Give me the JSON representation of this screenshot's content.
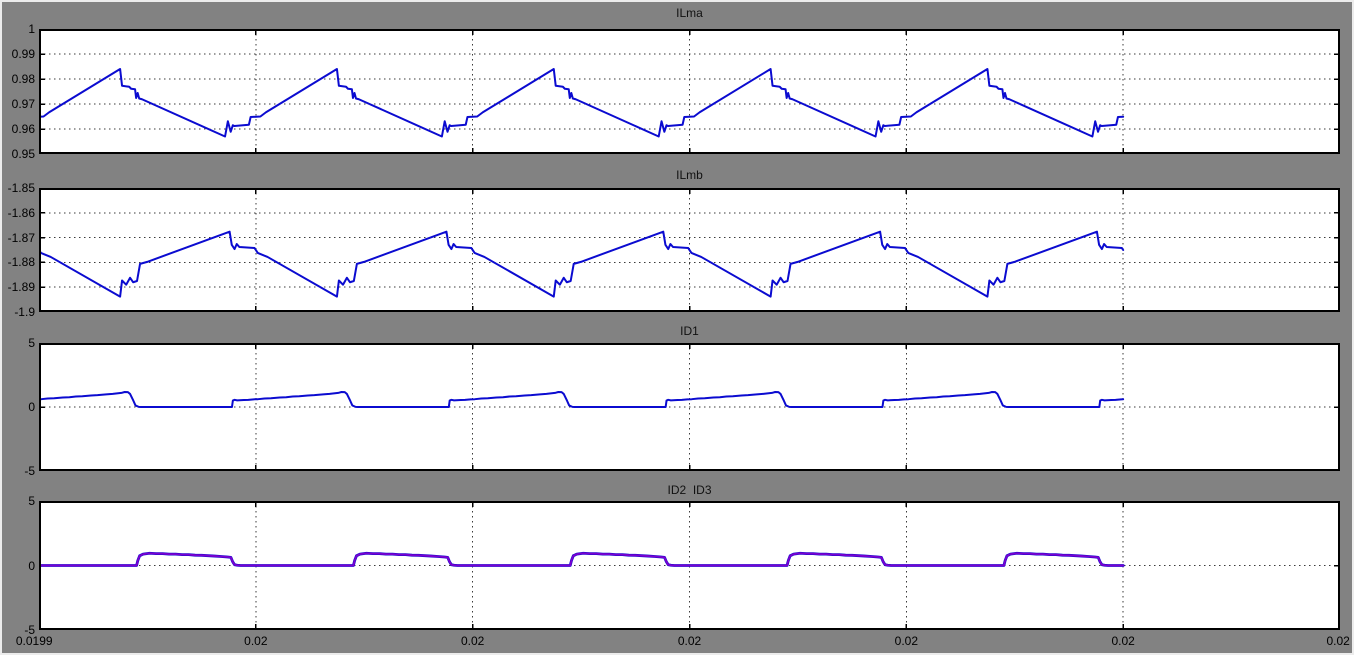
{
  "figure": {
    "background_color": "#828282",
    "plot_background": "#ffffff",
    "grid_color": "#3a3a3a",
    "frame_color": "#000000",
    "blue": "#0b0bd0",
    "purple": "#7d00ce"
  },
  "xaxis": {
    "divisions": 6,
    "tick_labels": [
      "0.0199",
      "0.02",
      "0.02",
      "0.02",
      "0.02",
      "0.02",
      "0.02"
    ],
    "gridline_divisions": [
      1,
      2,
      3,
      4,
      5
    ],
    "data_end_division": 5
  },
  "chart_data": [
    {
      "type": "line",
      "title": "ILma",
      "ylim": [
        0.95,
        1.0
      ],
      "ytick_values": [
        1.0,
        0.99,
        0.98,
        0.97,
        0.96,
        0.95
      ],
      "ytick_labels": [
        "1",
        "0.99",
        "0.98",
        "0.97",
        "0.96",
        "0.95"
      ],
      "grid": true,
      "series": [
        {
          "name": "ILma",
          "color": "#0b0bd0",
          "width": 2,
          "anchor_division": 0.374,
          "period_divisions": 1,
          "cycle_points": [
            [
              0.0,
              0.984
            ],
            [
              0.009,
              0.9773
            ],
            [
              0.042,
              0.9769
            ],
            [
              0.051,
              0.9761
            ],
            [
              0.069,
              0.9759
            ],
            [
              0.074,
              0.9724
            ],
            [
              0.081,
              0.9744
            ],
            [
              0.088,
              0.9722
            ],
            [
              0.101,
              0.9719
            ],
            [
              0.484,
              0.957
            ],
            [
              0.497,
              0.9631
            ],
            [
              0.51,
              0.9589
            ],
            [
              0.52,
              0.9615
            ],
            [
              0.527,
              0.9612
            ],
            [
              0.594,
              0.9617
            ],
            [
              0.602,
              0.9648
            ],
            [
              0.647,
              0.965
            ],
            [
              0.673,
              0.9667
            ],
            [
              1.0,
              0.984
            ]
          ]
        }
      ]
    },
    {
      "type": "line",
      "title": "ILmb",
      "ylim": [
        -1.9,
        -1.85
      ],
      "ytick_values": [
        -1.85,
        -1.86,
        -1.87,
        -1.88,
        -1.89,
        -1.9
      ],
      "ytick_labels": [
        "-1.85",
        "-1.86",
        "-1.87",
        "-1.88",
        "-1.89",
        "-1.9"
      ],
      "grid": true,
      "series": [
        {
          "name": "ILmb",
          "color": "#0b0bd0",
          "width": 2,
          "anchor_division": 0.374,
          "period_divisions": 1,
          "cycle_points": [
            [
              0.0,
              -1.8938
            ],
            [
              0.009,
              -1.8873
            ],
            [
              0.028,
              -1.889
            ],
            [
              0.046,
              -1.8862
            ],
            [
              0.06,
              -1.888
            ],
            [
              0.078,
              -1.8875
            ],
            [
              0.092,
              -1.8806
            ],
            [
              0.125,
              -1.8798
            ],
            [
              0.505,
              -1.8676
            ],
            [
              0.515,
              -1.8729
            ],
            [
              0.528,
              -1.8746
            ],
            [
              0.538,
              -1.8726
            ],
            [
              0.55,
              -1.8738
            ],
            [
              0.62,
              -1.8742
            ],
            [
              0.635,
              -1.8762
            ],
            [
              0.68,
              -1.8778
            ],
            [
              1.0,
              -1.8938
            ]
          ]
        }
      ]
    },
    {
      "type": "line",
      "title": "ID1",
      "ylim": [
        -5,
        5
      ],
      "ytick_values": [
        5,
        0,
        -5
      ],
      "ytick_labels": [
        "5",
        "0",
        "-5"
      ],
      "grid": true,
      "series": [
        {
          "name": "ID1",
          "color": "#0b0bd0",
          "width": 2,
          "anchor_division": -0.11,
          "period_divisions": 1,
          "cycle_points": [
            [
              0.0,
              0.0
            ],
            [
              0.004,
              0.5
            ],
            [
              0.012,
              0.56
            ],
            [
              0.024,
              0.52
            ],
            [
              0.055,
              0.55
            ],
            [
              0.075,
              0.56
            ],
            [
              0.1,
              0.6
            ],
            [
              0.12,
              0.61
            ],
            [
              0.15,
              0.66
            ],
            [
              0.18,
              0.68
            ],
            [
              0.22,
              0.74
            ],
            [
              0.25,
              0.76
            ],
            [
              0.28,
              0.82
            ],
            [
              0.31,
              0.84
            ],
            [
              0.35,
              0.9
            ],
            [
              0.38,
              0.93
            ],
            [
              0.42,
              0.99
            ],
            [
              0.45,
              1.03
            ],
            [
              0.49,
              1.1
            ],
            [
              0.505,
              1.17
            ],
            [
              0.52,
              1.16
            ],
            [
              0.53,
              1.02
            ],
            [
              0.545,
              0.5
            ],
            [
              0.555,
              0.12
            ],
            [
              0.57,
              0.01
            ],
            [
              0.58,
              0.0
            ],
            [
              1.0,
              0.0
            ]
          ]
        }
      ]
    },
    {
      "type": "line",
      "title": "ID2  ID3",
      "ylim": [
        -5,
        5
      ],
      "ytick_values": [
        5,
        0,
        -5
      ],
      "ytick_labels": [
        "5",
        "0",
        "-5"
      ],
      "grid": true,
      "series": [
        {
          "name": "ID3",
          "color": "#0b0bd0",
          "width": 2.8,
          "anchor_division": 0.45,
          "period_divisions": 1,
          "cycle_points": [
            [
              0.0,
              0.0
            ],
            [
              0.006,
              0.4
            ],
            [
              0.014,
              0.75
            ],
            [
              0.03,
              0.88
            ],
            [
              0.06,
              0.95
            ],
            [
              0.09,
              0.92
            ],
            [
              0.12,
              0.92
            ],
            [
              0.15,
              0.88
            ],
            [
              0.18,
              0.88
            ],
            [
              0.21,
              0.84
            ],
            [
              0.24,
              0.84
            ],
            [
              0.27,
              0.8
            ],
            [
              0.3,
              0.79
            ],
            [
              0.33,
              0.76
            ],
            [
              0.36,
              0.73
            ],
            [
              0.39,
              0.7
            ],
            [
              0.42,
              0.66
            ],
            [
              0.435,
              0.63
            ],
            [
              0.443,
              0.3
            ],
            [
              0.452,
              0.06
            ],
            [
              0.465,
              0.02
            ],
            [
              0.48,
              0.0
            ],
            [
              1.0,
              0.0
            ]
          ]
        },
        {
          "name": "ID2",
          "color": "#7d00ce",
          "width": 1.8,
          "anchor_division": 0.45,
          "period_divisions": 1,
          "cycle_points": [
            [
              0.0,
              0.0
            ],
            [
              0.006,
              0.4
            ],
            [
              0.014,
              0.75
            ],
            [
              0.03,
              0.88
            ],
            [
              0.06,
              0.95
            ],
            [
              0.09,
              0.92
            ],
            [
              0.12,
              0.92
            ],
            [
              0.15,
              0.88
            ],
            [
              0.18,
              0.88
            ],
            [
              0.21,
              0.84
            ],
            [
              0.24,
              0.84
            ],
            [
              0.27,
              0.8
            ],
            [
              0.3,
              0.79
            ],
            [
              0.33,
              0.76
            ],
            [
              0.36,
              0.73
            ],
            [
              0.39,
              0.7
            ],
            [
              0.42,
              0.66
            ],
            [
              0.435,
              0.63
            ],
            [
              0.443,
              0.3
            ],
            [
              0.452,
              0.06
            ],
            [
              0.465,
              0.02
            ],
            [
              0.48,
              0.0
            ],
            [
              1.0,
              0.0
            ]
          ]
        }
      ]
    }
  ]
}
